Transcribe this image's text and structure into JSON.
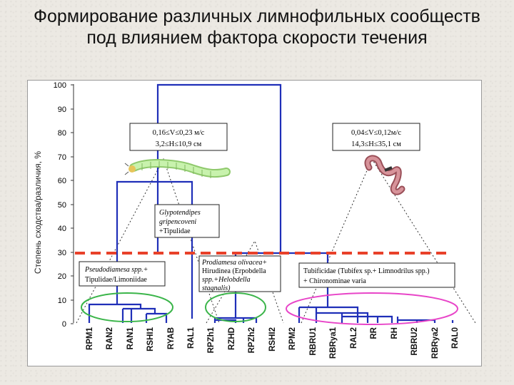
{
  "title": {
    "line1": "Формирование различных лимнофильных сообществ",
    "line2": "под влиянием фактора скорости течения"
  },
  "axis": {
    "ylabel": "Степень сходства/различия, %",
    "ticks": [
      "0",
      "10",
      "20",
      "30",
      "40",
      "50",
      "60",
      "70",
      "80",
      "90",
      "100"
    ]
  },
  "leaves": [
    "RPM1",
    "RAN2",
    "RAN1",
    "RSHI1",
    "RYAB",
    "RAL1",
    "RPZh1",
    "RZHD",
    "RPZh2",
    "RSHI2",
    "RPM2",
    "RBRU1",
    "RBRya1",
    "RAL2",
    "RR",
    "RH",
    "RBRU2",
    "RBRya2",
    "RAL0"
  ],
  "boxes": {
    "left_velocity": {
      "line1": "0,16≤V≤0,23 м/с",
      "line2": "3,2≤H≤10,9 см"
    },
    "right_velocity": {
      "line1": "0,04≤V≤0,12м/с",
      "line2": "14,3≤H≤35,1 см"
    },
    "glypto": {
      "line1": "Glypotendipes",
      "line2": "gripencoveni",
      "line3": "+Tipulidae"
    },
    "pseudo": {
      "line1": "Pseudodiamesa spp.+",
      "line2": "Tipulidae/Limoniidae"
    },
    "prodiamesa": {
      "line1": "Prodiamesa olivacea+",
      "line2": "Hirudinea (Erpobdella",
      "line3": "spp.+Helobdella",
      "line4": "stagnalis)"
    },
    "tubificidae": {
      "line1": "Tubificidae (Tubifex sp.+ Limnodrilus spp.)",
      "line2": "+ Chironominae varia"
    }
  },
  "colors": {
    "tree": "#1f2fb8",
    "cutline": "#e8412a",
    "ellipse_green": "#3bb54a",
    "ellipse_pink": "#e845c8",
    "larva": "#b7ea98",
    "worm": "#c9767a"
  },
  "icons": [
    "larva-icon",
    "worm-icon"
  ]
}
